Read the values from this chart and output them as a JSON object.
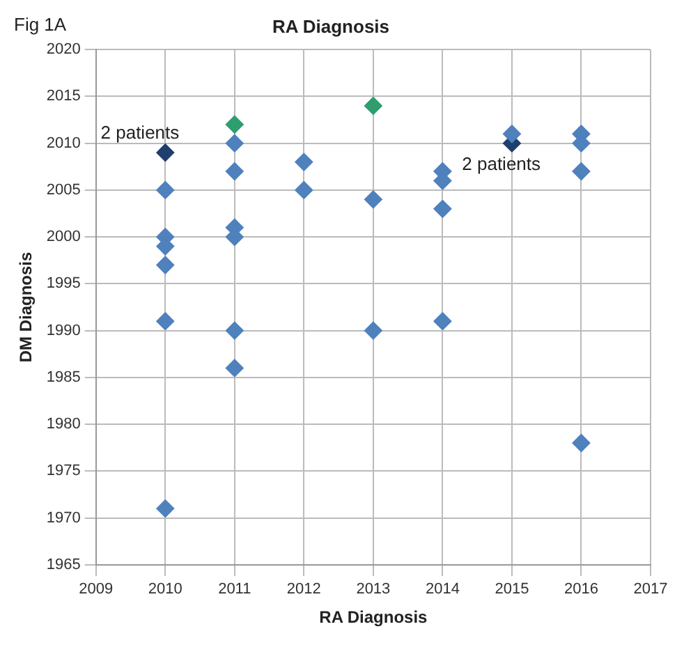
{
  "chart_data": {
    "type": "scatter",
    "title": "RA Diagnosis",
    "xlabel": "RA Diagnosis",
    "ylabel": "DM Diagnosis",
    "annotations": [
      "Fig 1A",
      {
        "text": "2 patients",
        "x": 2010,
        "y": 2009
      },
      {
        "text": "2 patients",
        "x": 2015,
        "y": 2010
      }
    ],
    "series": [
      {
        "color": "#4f81bd",
        "x": [
          2010,
          2010,
          2010,
          2010,
          2010,
          2010,
          2011,
          2011,
          2011,
          2011,
          2011,
          2011,
          2012,
          2012,
          2013,
          2013,
          2014,
          2014,
          2014,
          2014,
          2015,
          2016,
          2016,
          2016,
          2016
        ],
        "values": [
          2005,
          2000,
          1999,
          1997,
          1991,
          1971,
          2010,
          2007,
          2001,
          2000,
          1990,
          1986,
          2008,
          2005,
          2004,
          1990,
          2007,
          2006,
          2003,
          1991,
          2011,
          2011,
          2010,
          2007,
          1978
        ]
      },
      {
        "color": "#1f3f6e",
        "x": [
          2010,
          2015
        ],
        "values": [
          2009,
          2010
        ]
      },
      {
        "color": "#2e9e6e",
        "x": [
          2011,
          2013
        ],
        "values": [
          2012,
          2014
        ]
      }
    ],
    "marker": "diamond",
    "xlim": [
      2009,
      2017
    ],
    "xticks": [
      2009,
      2010,
      2011,
      2012,
      2013,
      2014,
      2015,
      2016,
      2017
    ],
    "ylim": [
      1965,
      2020
    ],
    "yticks": [
      1965,
      1970,
      1975,
      1980,
      1985,
      1990,
      1995,
      2000,
      2005,
      2010,
      2015,
      2020
    ],
    "grid": true,
    "legend": false
  }
}
